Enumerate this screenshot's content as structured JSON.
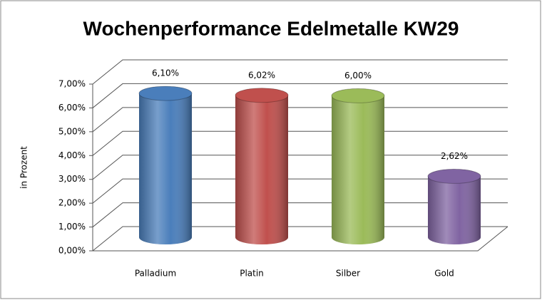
{
  "chart_data": {
    "type": "bar3d",
    "title": "Wochenperformance Edelmetalle KW29",
    "y_label": "in Prozent",
    "categories": [
      "Palladium",
      "Platin",
      "Silber",
      "Gold"
    ],
    "values": [
      6.1,
      6.02,
      6.0,
      2.62
    ],
    "value_labels": [
      "6,10%",
      "6,02%",
      "6,00%",
      "2,62%"
    ],
    "colors": [
      "#4a7ebb",
      "#c0504d",
      "#9bbb59",
      "#8064a2"
    ],
    "ylim": [
      0,
      7
    ],
    "yticks": [
      {
        "value": 0,
        "label": "0,00%"
      },
      {
        "value": 1,
        "label": "1,00%"
      },
      {
        "value": 2,
        "label": "2,00%"
      },
      {
        "value": 3,
        "label": "3,00%"
      },
      {
        "value": 4,
        "label": "4,00%"
      },
      {
        "value": 5,
        "label": "5,00%"
      },
      {
        "value": 6,
        "label": "6,00%"
      },
      {
        "value": 7,
        "label": "7,00%"
      }
    ],
    "grid": true
  }
}
